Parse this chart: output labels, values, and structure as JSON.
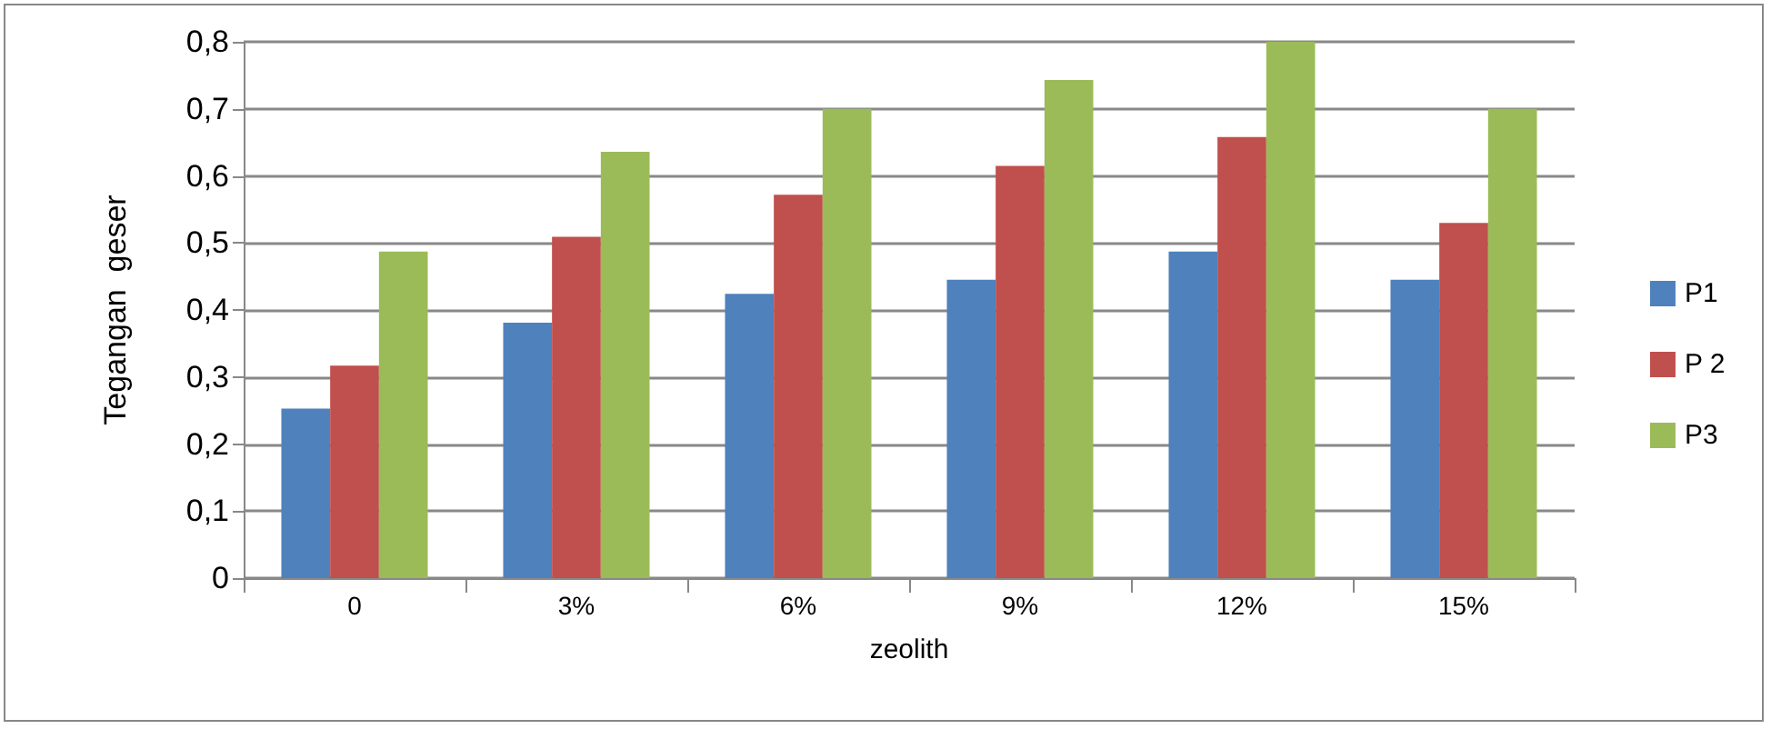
{
  "chart_data": {
    "type": "bar",
    "xlabel": "zeolith",
    "ylabel": "Tegangan  geser",
    "categories": [
      "0",
      "3%",
      "6%",
      "9%",
      "12%",
      "15%"
    ],
    "series": [
      {
        "name": "P1",
        "color": "#4f81bd",
        "values": [
          0.253,
          0.381,
          0.424,
          0.445,
          0.487,
          0.445
        ]
      },
      {
        "name": "P 2",
        "color": "#c0504d",
        "values": [
          0.317,
          0.509,
          0.572,
          0.615,
          0.658,
          0.53
        ]
      },
      {
        "name": "P3",
        "color": "#9bbb59",
        "values": [
          0.487,
          0.636,
          0.7,
          0.743,
          0.8,
          0.7
        ]
      }
    ],
    "ylim": [
      0,
      0.8
    ],
    "yticks": [
      0,
      {
        "value": 0.1,
        "label": "0,1"
      },
      {
        "value": 0.2,
        "label": "0,2"
      },
      {
        "value": 0.3,
        "label": "0,3"
      },
      {
        "value": 0.4,
        "label": "0,4"
      },
      {
        "value": 0.5,
        "label": "0,5"
      },
      {
        "value": 0.6,
        "label": "0,6"
      },
      {
        "value": 0.7,
        "label": "0,7"
      },
      {
        "value": 0.8,
        "label": "0,8"
      }
    ],
    "grid": "y",
    "legend": "right"
  }
}
